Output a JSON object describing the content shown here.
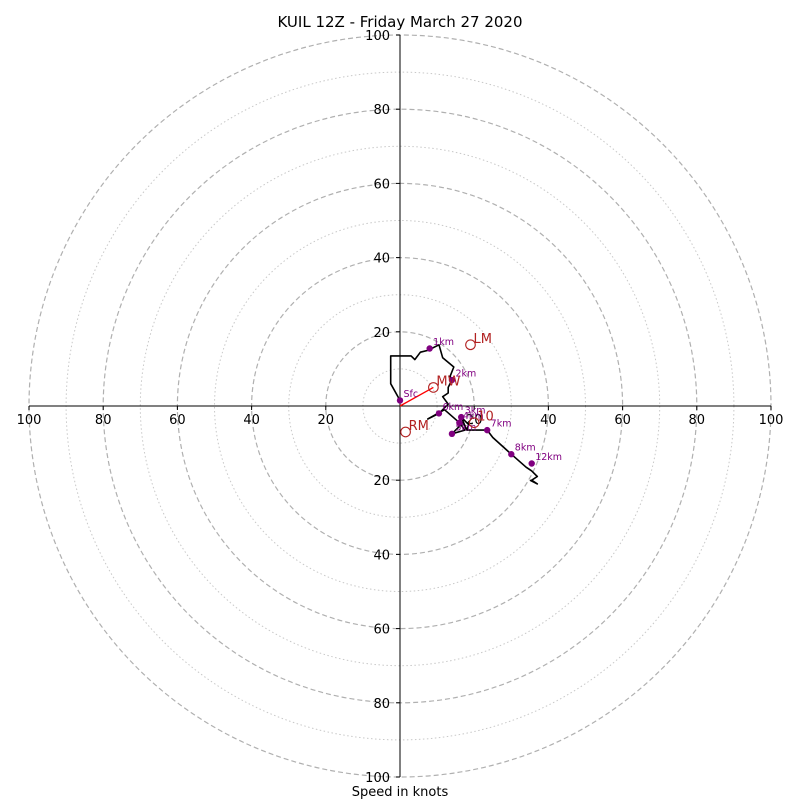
{
  "chart_data": {
    "type": "hodograph",
    "title": "KUIL 12Z - Friday March 27 2020",
    "xlabel": "Speed in knots",
    "range_knots": 100,
    "ring_labels": [
      "100",
      "80",
      "60",
      "40",
      "20",
      "20",
      "40",
      "60",
      "80",
      "100"
    ],
    "axis_tick_labels": {
      "x_left": [
        "100",
        "80",
        "60",
        "40",
        "20"
      ],
      "x_right": [
        "20",
        "40",
        "60",
        "80",
        "100"
      ],
      "y_top": [
        "100",
        "80",
        "60",
        "40",
        "20"
      ],
      "y_bottom": [
        "20",
        "40",
        "60",
        "80",
        "100"
      ]
    },
    "ring_values": [
      20,
      40,
      60,
      80,
      100
    ],
    "minor_ring_values": [
      10,
      30,
      50,
      70,
      90
    ],
    "grid": true,
    "colors": {
      "trace": "#000000",
      "height_marker": "#800080",
      "storm_motion": "#b22222",
      "mean_wind_arrow": "#ff0000",
      "major_ring": "#b0b0b0",
      "minor_ring": "#c8c8c8"
    },
    "trace": [
      {
        "u": 0,
        "v": 1.5
      },
      {
        "u": -2.5,
        "v": 6
      },
      {
        "u": -2.5,
        "v": 13.5
      },
      {
        "u": 3,
        "v": 13.5
      },
      {
        "u": 4,
        "v": 12.5
      },
      {
        "u": 5.5,
        "v": 14.5
      },
      {
        "u": 7.5,
        "v": 15
      },
      {
        "u": 10.5,
        "v": 16.5
      },
      {
        "u": 11.5,
        "v": 13
      },
      {
        "u": 14.5,
        "v": 10.5
      },
      {
        "u": 13.5,
        "v": 8
      },
      {
        "u": 14,
        "v": 7
      },
      {
        "u": 13,
        "v": 5
      },
      {
        "u": 13,
        "v": 3.5
      },
      {
        "u": 11.5,
        "v": 2.5
      },
      {
        "u": 13,
        "v": 0.5
      },
      {
        "u": 10.5,
        "v": -2
      },
      {
        "u": 7.5,
        "v": -3.5
      },
      {
        "u": 12,
        "v": -1
      },
      {
        "u": 16,
        "v": -4.5
      },
      {
        "u": 17.5,
        "v": -6.5
      },
      {
        "u": 14,
        "v": -7.5
      },
      {
        "u": 17,
        "v": -4.5
      },
      {
        "u": 18,
        "v": -6.5
      },
      {
        "u": 18.5,
        "v": -5
      },
      {
        "u": 16.5,
        "v": -3
      },
      {
        "u": 18,
        "v": -6.5
      },
      {
        "u": 23.5,
        "v": -6.5
      },
      {
        "u": 25,
        "v": -8.5
      },
      {
        "u": 30,
        "v": -13
      },
      {
        "u": 34,
        "v": -16.5
      },
      {
        "u": 35.5,
        "v": -17.5
      },
      {
        "u": 37,
        "v": -19
      },
      {
        "u": 35.5,
        "v": -20
      },
      {
        "u": 37,
        "v": -21
      },
      {
        "u": 35,
        "v": -20
      }
    ],
    "height_markers": [
      {
        "label": "Sfc",
        "u": 0,
        "v": 1.5
      },
      {
        "label": "1km",
        "u": 8,
        "v": 15.5
      },
      {
        "label": "2km",
        "u": 14,
        "v": 7
      },
      {
        "label": "3km",
        "u": 16.5,
        "v": -3
      },
      {
        "label": "4km",
        "u": 16,
        "v": -4.5
      },
      {
        "label": "5km",
        "u": 14,
        "v": -7.5
      },
      {
        "label": "6km",
        "u": 10.5,
        "v": -2
      },
      {
        "label": "7km",
        "u": 23.5,
        "v": -6.5
      },
      {
        "label": "8km",
        "u": 30,
        "v": -13
      },
      {
        "label": "12km",
        "u": 35.5,
        "v": -15.5
      }
    ],
    "storm_motions": [
      {
        "label": "LM",
        "u": 19,
        "v": 16.5
      },
      {
        "label": "MW",
        "u": 9,
        "v": 5
      },
      {
        "label": "RM",
        "u": 1.5,
        "v": -7
      },
      {
        "label": "10",
        "u": 20,
        "v": -4.5
      }
    ],
    "mean_wind_arrow": {
      "from": {
        "u": 0,
        "v": 0
      },
      "to": {
        "u": 9,
        "v": 5
      }
    }
  }
}
